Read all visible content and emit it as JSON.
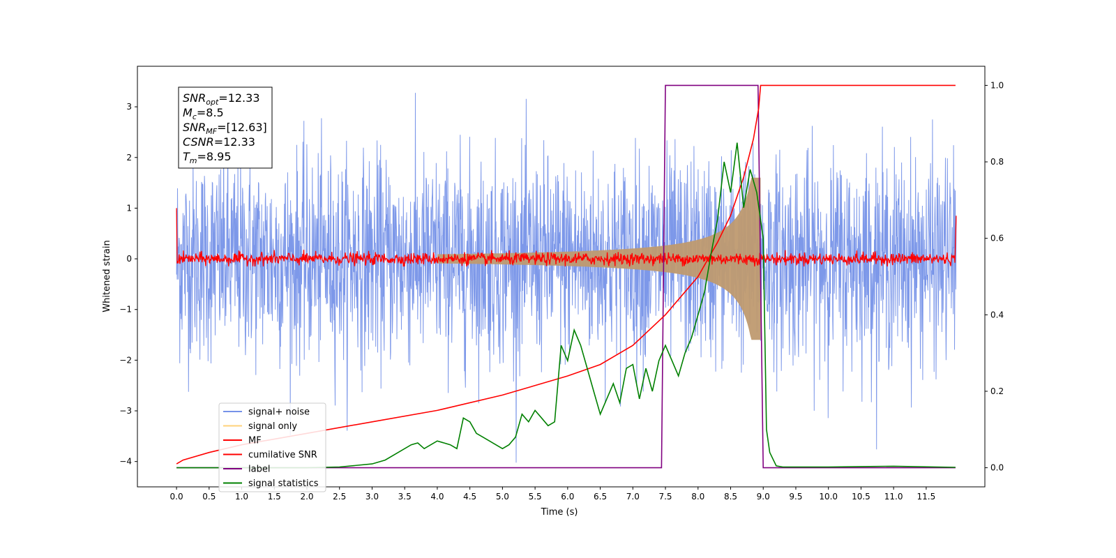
{
  "chart_data": {
    "type": "line",
    "xlabel": "Time (s)",
    "ylabel": "Whitened strain",
    "xlim": [
      -0.6,
      12.4
    ],
    "ylim_left": [
      -4.5,
      3.8
    ],
    "ylim_right": [
      -0.05,
      1.05
    ],
    "x_ticks": [
      "0.0",
      "0.5",
      "1.0",
      "1.5",
      "2.0",
      "2.5",
      "3.0",
      "3.5",
      "4.0",
      "4.5",
      "5.0",
      "5.5",
      "6.0",
      "6.5",
      "7.0",
      "7.5",
      "8.0",
      "8.5",
      "9.0",
      "9.5",
      "10.0",
      "10.5",
      "11.0",
      "11.5"
    ],
    "y_ticks_left": [
      "3",
      "2",
      "1",
      "0",
      "−1",
      "−2",
      "−3",
      "−4"
    ],
    "y_ticks_right": [
      "1.0",
      "0.8",
      "0.6",
      "0.4",
      "0.2",
      "0.0"
    ],
    "annotation": [
      {
        "sym": "SNR",
        "sub": "opt",
        "val": "=12.33"
      },
      {
        "sym": "M",
        "sub": "c",
        "val": "=8.5"
      },
      {
        "sym": "SNR",
        "sub": "MF",
        "val": "=[12.63]"
      },
      {
        "sym": "CSNR",
        "sub": "",
        "val": "=12.33"
      },
      {
        "sym": "T",
        "sub": "m",
        "val": "=8.95"
      }
    ],
    "legend": [
      {
        "label": "signal+ noise",
        "color": "#7692e8"
      },
      {
        "label": "signal only",
        "color": "#ffd27a"
      },
      {
        "label": "MF",
        "color": "#ff0000"
      },
      {
        "label": "cumilative SNR",
        "color": "#ff0000"
      },
      {
        "label": "label",
        "color": "#800080"
      },
      {
        "label": "signal statistics",
        "color": "#008000"
      }
    ],
    "legend_position": "lower-left",
    "series_colors": {
      "noise": "#7692e8",
      "signal": "#bf9a70",
      "mf": "#ff0000",
      "csnr": "#ff0000",
      "label": "#800080",
      "stat": "#008000"
    },
    "series": [
      {
        "name": "label",
        "axis": "right",
        "x": [
          0.0,
          7.44,
          7.5,
          8.92,
          9.0,
          11.95
        ],
        "y": [
          0,
          0,
          1,
          1,
          0,
          0
        ]
      },
      {
        "name": "cumilative SNR",
        "axis": "right",
        "x": [
          0.0,
          0.1,
          0.5,
          1.0,
          2.0,
          3.0,
          4.0,
          5.0,
          6.0,
          6.5,
          7.0,
          7.5,
          8.0,
          8.3,
          8.5,
          8.7,
          8.85,
          8.93,
          8.96,
          11.95
        ],
        "y": [
          0.01,
          0.02,
          0.04,
          0.06,
          0.09,
          0.12,
          0.15,
          0.19,
          0.24,
          0.27,
          0.32,
          0.4,
          0.5,
          0.59,
          0.66,
          0.76,
          0.86,
          0.94,
          1.0,
          1.0
        ]
      },
      {
        "name": "signal statistics",
        "axis": "right",
        "x": [
          0.0,
          1.0,
          2.0,
          2.5,
          3.0,
          3.2,
          3.4,
          3.6,
          3.7,
          3.8,
          4.0,
          4.2,
          4.3,
          4.4,
          4.5,
          4.6,
          4.7,
          4.8,
          4.9,
          5.0,
          5.1,
          5.2,
          5.3,
          5.4,
          5.5,
          5.6,
          5.7,
          5.8,
          5.9,
          6.0,
          6.1,
          6.2,
          6.3,
          6.4,
          6.5,
          6.6,
          6.7,
          6.8,
          6.9,
          7.0,
          7.1,
          7.2,
          7.3,
          7.4,
          7.5,
          7.6,
          7.7,
          7.8,
          7.9,
          8.0,
          8.1,
          8.2,
          8.3,
          8.4,
          8.5,
          8.6,
          8.7,
          8.8,
          8.9,
          9.0,
          9.05,
          9.1,
          9.2,
          9.3,
          10.0,
          10.5,
          11.0,
          11.95
        ],
        "y": [
          0.0,
          0.0,
          0.0,
          0.002,
          0.01,
          0.02,
          0.04,
          0.06,
          0.065,
          0.05,
          0.07,
          0.06,
          0.05,
          0.13,
          0.12,
          0.09,
          0.08,
          0.07,
          0.06,
          0.05,
          0.06,
          0.08,
          0.14,
          0.12,
          0.15,
          0.13,
          0.11,
          0.12,
          0.32,
          0.28,
          0.36,
          0.32,
          0.26,
          0.2,
          0.14,
          0.18,
          0.22,
          0.17,
          0.26,
          0.27,
          0.18,
          0.26,
          0.2,
          0.28,
          0.32,
          0.28,
          0.24,
          0.3,
          0.34,
          0.4,
          0.46,
          0.56,
          0.65,
          0.8,
          0.72,
          0.85,
          0.68,
          0.78,
          0.72,
          0.6,
          0.1,
          0.04,
          0.005,
          0.002,
          0.002,
          0.003,
          0.004,
          0.001
        ]
      }
    ]
  }
}
